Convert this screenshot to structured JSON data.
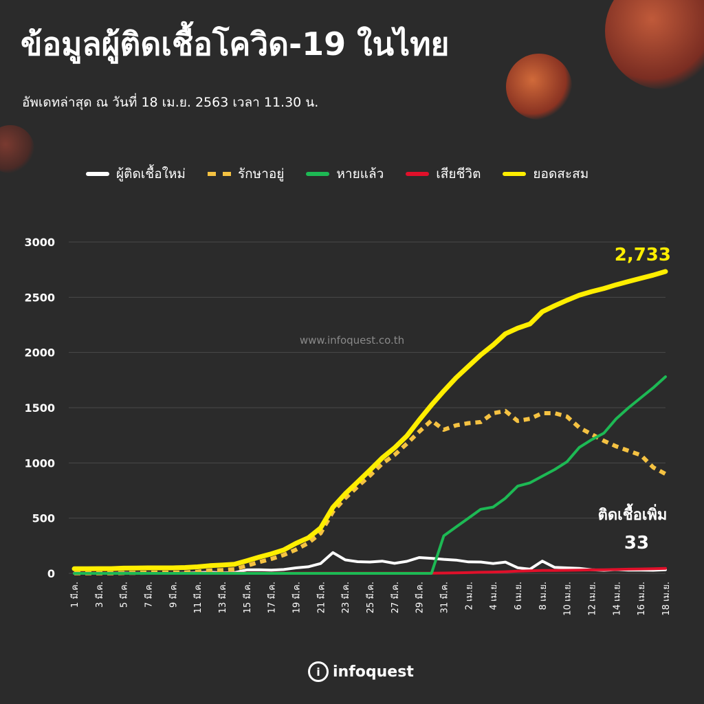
{
  "header": {
    "title": "ข้อมูลผู้ติดเชื้อโควิด-19 ในไทย",
    "subtitle": "อัพเดทล่าสุด ณ วันที่ 18 เม.ย. 2563 เวลา 11.30 น."
  },
  "watermark": "www.infoquest.co.th",
  "brand": {
    "name": "infoquest",
    "icon": "info-icon"
  },
  "annotations": {
    "total_value": "2,733",
    "new_label": "ติดเชื้อเพิ่ม",
    "new_value": "33"
  },
  "colors": {
    "background": "#2b2b2b",
    "new_cases": "#ffffff",
    "active": "#f5c242",
    "recovered": "#1db954",
    "deaths": "#e0102a",
    "total": "#ffee00"
  },
  "chart_data": {
    "type": "line",
    "ylim": [
      0,
      3000
    ],
    "yticks": [
      0,
      500,
      1000,
      1500,
      2000,
      2500,
      3000
    ],
    "grid": true,
    "legend_position": "top",
    "x": [
      "1 มี.ค.",
      "2 มี.ค.",
      "3 มี.ค.",
      "4 มี.ค.",
      "5 มี.ค.",
      "6 มี.ค.",
      "7 มี.ค.",
      "8 มี.ค.",
      "9 มี.ค.",
      "10 มี.ค.",
      "11 มี.ค.",
      "12 มี.ค.",
      "13 มี.ค.",
      "14 มี.ค.",
      "15 มี.ค.",
      "16 มี.ค.",
      "17 มี.ค.",
      "18 มี.ค.",
      "19 มี.ค.",
      "20 มี.ค.",
      "21 มี.ค.",
      "22 มี.ค.",
      "23 มี.ค.",
      "24 มี.ค.",
      "25 มี.ค.",
      "26 มี.ค.",
      "27 มี.ค.",
      "28 มี.ค.",
      "29 มี.ค.",
      "30 มี.ค.",
      "31 มี.ค.",
      "1 เม.ย.",
      "2 เม.ย.",
      "3 เม.ย.",
      "4 เม.ย.",
      "5 เม.ย.",
      "6 เม.ย.",
      "7 เม.ย.",
      "8 เม.ย.",
      "9 เม.ย.",
      "10 เม.ย.",
      "11 เม.ย.",
      "12 เม.ย.",
      "13 เม.ย.",
      "14 เม.ย.",
      "15 เม.ย.",
      "16 เม.ย.",
      "17 เม.ย.",
      "18 เม.ย."
    ],
    "x_tick_labels": [
      "1 มี.ค.",
      "3 มี.ค.",
      "5 มี.ค.",
      "7 มี.ค.",
      "9 มี.ค.",
      "11 มี.ค.",
      "13 มี.ค.",
      "15 มี.ค.",
      "17 มี.ค.",
      "19 มี.ค.",
      "21 มี.ค.",
      "23 มี.ค.",
      "25 มี.ค.",
      "27 มี.ค.",
      "29 มี.ค.",
      "31 มี.ค.",
      "2 เม.ย.",
      "4 เม.ย.",
      "6 เม.ย.",
      "8 เม.ย.",
      "10 เม.ย.",
      "12 เม.ย.",
      "14 เม.ย.",
      "16 เม.ย.",
      "18 เม.ย."
    ],
    "series": [
      {
        "name": "ผู้ติดเชื้อใหม่",
        "color": "#ffffff",
        "style": "solid",
        "values": [
          1,
          0,
          0,
          0,
          4,
          1,
          2,
          0,
          0,
          3,
          6,
          11,
          5,
          7,
          32,
          33,
          30,
          35,
          50,
          60,
          89,
          188,
          122,
          106,
          103,
          111,
          91,
          109,
          143,
          136,
          127,
          120,
          104,
          103,
          89,
          102,
          51,
          38,
          111,
          54,
          50,
          45,
          33,
          28,
          34,
          30,
          29,
          28,
          33
        ]
      },
      {
        "name": "รักษาอยู่",
        "color": "#f5c242",
        "style": "dashed",
        "values": [
          1,
          1,
          1,
          1,
          4,
          5,
          7,
          7,
          7,
          9,
          15,
          26,
          30,
          37,
          69,
          102,
          131,
          166,
          215,
          275,
          363,
          559,
          681,
          785,
          885,
          993,
          1072,
          1174,
          1283,
          1384,
          1300,
          1340,
          1360,
          1370,
          1450,
          1470,
          1380,
          1400,
          1450,
          1450,
          1420,
          1320,
          1260,
          1200,
          1150,
          1110,
          1070,
          960,
          900
        ]
      },
      {
        "name": "หายแล้ว",
        "color": "#1db954",
        "style": "solid",
        "values": [
          0,
          0,
          0,
          0,
          0,
          0,
          0,
          0,
          0,
          0,
          0,
          0,
          0,
          0,
          0,
          0,
          0,
          0,
          0,
          0,
          0,
          0,
          0,
          0,
          0,
          0,
          0,
          0,
          0,
          0,
          340,
          420,
          500,
          580,
          600,
          680,
          790,
          820,
          880,
          940,
          1010,
          1140,
          1210,
          1270,
          1400,
          1500,
          1590,
          1680,
          1780
        ]
      },
      {
        "name": "เสียชีวิต",
        "color": "#e0102a",
        "style": "solid",
        "values": [
          1,
          1,
          1,
          1,
          1,
          1,
          1,
          1,
          1,
          1,
          1,
          1,
          1,
          1,
          1,
          1,
          1,
          1,
          1,
          1,
          1,
          1,
          1,
          1,
          1,
          1,
          1,
          1,
          1,
          2,
          3,
          5,
          7,
          10,
          12,
          15,
          20,
          23,
          26,
          27,
          28,
          30,
          32,
          33,
          35,
          38,
          40,
          42,
          45
        ]
      },
      {
        "name": "ยอดสะสม",
        "color": "#ffee00",
        "style": "solid",
        "values": [
          42,
          42,
          43,
          43,
          47,
          48,
          50,
          50,
          50,
          53,
          59,
          70,
          75,
          82,
          114,
          147,
          177,
          212,
          272,
          322,
          411,
          599,
          721,
          827,
          934,
          1045,
          1136,
          1245,
          1388,
          1524,
          1651,
          1771,
          1875,
          1978,
          2067,
          2169,
          2220,
          2258,
          2369,
          2423,
          2473,
          2518,
          2551,
          2579,
          2613,
          2643,
          2672,
          2700,
          2733
        ]
      }
    ]
  }
}
